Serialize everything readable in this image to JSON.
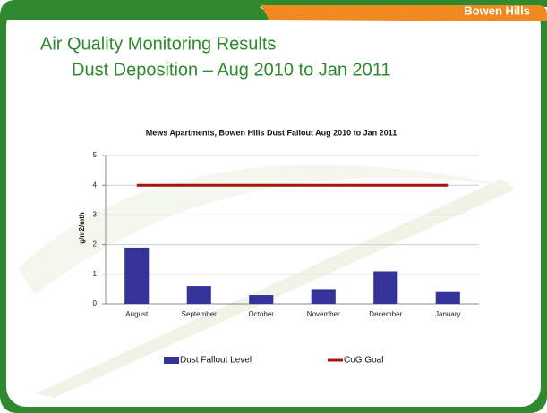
{
  "slide": {
    "tag": "Bowen Hills",
    "title": [
      "Air Quality Monitoring Results",
      "Dust Deposition – Aug 2010 to Jan 2011"
    ]
  },
  "chart_data": {
    "type": "bar",
    "title": "Mews Apartments, Bowen Hills Dust Fallout Aug 2010 to Jan 2011",
    "ylabel": "g/m2/mth",
    "categories": [
      "August",
      "September",
      "October",
      "November",
      "December",
      "January"
    ],
    "series": [
      {
        "name": "Dust Fallout Level",
        "type": "bar",
        "color": "#333399",
        "values": [
          1.9,
          0.6,
          0.3,
          0.5,
          1.1,
          0.4
        ]
      },
      {
        "name": "CoG Goal",
        "type": "line",
        "color": "#aa1111",
        "values": [
          4,
          4,
          4,
          4,
          4,
          4
        ]
      }
    ],
    "ylim": [
      0,
      5
    ],
    "yticks": [
      0,
      1,
      2,
      3,
      4,
      5
    ],
    "grid": true,
    "legend": "bottom"
  }
}
